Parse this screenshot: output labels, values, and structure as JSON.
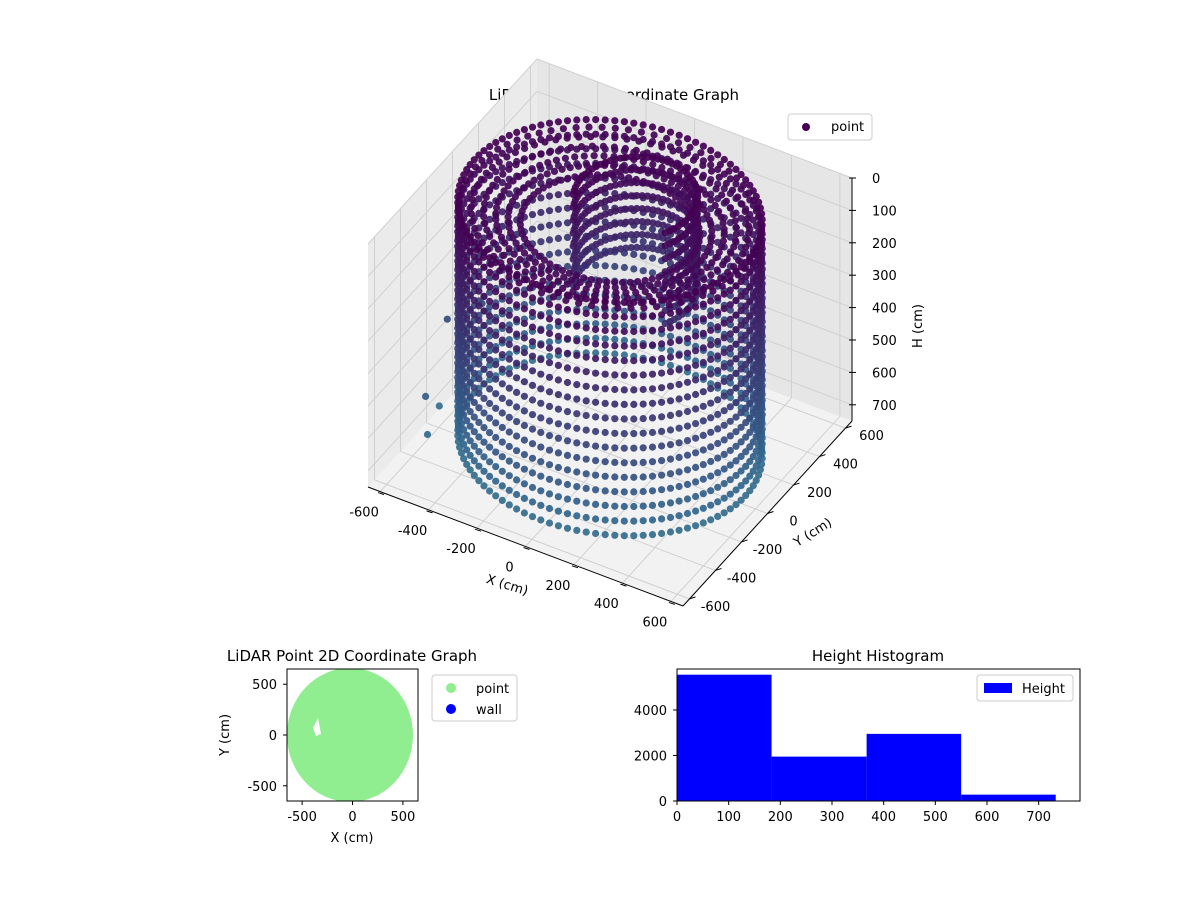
{
  "colors": {
    "point_3d": "#440154",
    "viridis_low": "#440154",
    "viridis_mid": "#31688e",
    "viridis_high": "#6ece58",
    "point_2d": "#90ee90",
    "wall": "#0000ff",
    "histogram": "#0000ff"
  },
  "chart_data": [
    {
      "type": "scatter",
      "projection": "3d",
      "title": "LiDAR Point 3D Coordinate Graph",
      "xlabel": "X (cm)",
      "ylabel": "Y (cm)",
      "zlabel": "H (cm)",
      "xlim": [
        -650,
        650
      ],
      "ylim": [
        -650,
        650
      ],
      "zlim": [
        0,
        750
      ],
      "z_inverted": true,
      "xticks": [
        "-600",
        "-400",
        "-200",
        "0",
        "200",
        "400",
        "600"
      ],
      "yticks": [
        "-600",
        "-400",
        "-200",
        "0",
        "200",
        "400",
        "600"
      ],
      "zticks": [
        "0",
        "100",
        "200",
        "300",
        "400",
        "500",
        "600",
        "700"
      ],
      "legend": {
        "position": "top-right",
        "entries": [
          "point"
        ]
      },
      "grid": true,
      "colormap": "viridis",
      "series": [
        {
          "name": "point",
          "description_values": {
            "outer_wall_radius_cm": 560,
            "inner_wall_radius_cm": 330,
            "wall_height_range_cm": [
              0,
              760
            ]
          }
        }
      ]
    },
    {
      "type": "scatter",
      "title": "LiDAR Point 2D Coordinate Graph",
      "xlabel": "X (cm)",
      "ylabel": "Y (cm)",
      "xlim": [
        -650,
        650
      ],
      "ylim": [
        -650,
        650
      ],
      "xticks": [
        "-500",
        "0",
        "500"
      ],
      "yticks": [
        "500",
        "0",
        "-500"
      ],
      "legend": {
        "position": "outside-right",
        "entries": [
          "point",
          "wall"
        ]
      },
      "series": [
        {
          "name": "point",
          "shape": "filled disc, radius ~600 cm"
        },
        {
          "name": "wall",
          "points": []
        }
      ]
    },
    {
      "type": "bar",
      "subtype": "histogram",
      "title": "Height Histogram",
      "xlim": [
        0,
        780
      ],
      "ylim": [
        0,
        5800
      ],
      "xticks": [
        "0",
        "100",
        "200",
        "300",
        "400",
        "500",
        "600",
        "700"
      ],
      "yticks": [
        "0",
        "2000",
        "4000"
      ],
      "legend": {
        "position": "top-right",
        "entries": [
          "Height"
        ]
      },
      "bins": [
        {
          "from": 0,
          "to": 183,
          "count": 5550
        },
        {
          "from": 183,
          "to": 367,
          "count": 1950
        },
        {
          "from": 367,
          "to": 550,
          "count": 2950
        },
        {
          "from": 550,
          "to": 733,
          "count": 280
        }
      ]
    }
  ]
}
